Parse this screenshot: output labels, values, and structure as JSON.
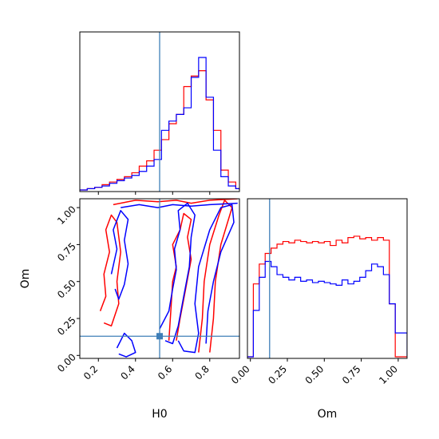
{
  "colors": {
    "series_red": "#ff0000",
    "series_blue": "#0000ff",
    "truth": "#3f7fb8",
    "axes": "#000000",
    "background": "#ffffff"
  },
  "labels": {
    "x_h0": "H0",
    "y_om": "Om",
    "x_om": "Om"
  },
  "chart_data": {
    "type": "corner",
    "parameters": [
      "H0",
      "Om"
    ],
    "truth": {
      "H0": 0.53,
      "Om": 0.13
    },
    "h0_axis": {
      "range": [
        0.1,
        0.96
      ],
      "ticks": [
        "0.2",
        "0.4",
        "0.6",
        "0.8"
      ],
      "tick_values": [
        0.2,
        0.4,
        0.6,
        0.8
      ]
    },
    "om_axis": {
      "range": [
        -0.02,
        1.06
      ],
      "ticks": [
        "0.00",
        "0.25",
        "0.50",
        "0.75",
        "1.00"
      ],
      "tick_values": [
        0.0,
        0.25,
        0.5,
        0.75,
        1.0
      ]
    },
    "h0_marginal": {
      "bin_edges": [
        0.1,
        0.14,
        0.18,
        0.22,
        0.26,
        0.3,
        0.34,
        0.38,
        0.42,
        0.46,
        0.5,
        0.54,
        0.58,
        0.62,
        0.66,
        0.7,
        0.74,
        0.78,
        0.82,
        0.86,
        0.9,
        0.94,
        0.96
      ],
      "series": [
        {
          "color": "red",
          "values": [
            0,
            0.01,
            0.02,
            0.04,
            0.06,
            0.08,
            0.1,
            0.13,
            0.18,
            0.22,
            0.3,
            0.38,
            0.5,
            0.57,
            0.78,
            0.86,
            0.9,
            0.68,
            0.45,
            0.15,
            0.06,
            0.01
          ]
        },
        {
          "color": "blue",
          "values": [
            0,
            0.01,
            0.02,
            0.03,
            0.05,
            0.07,
            0.09,
            0.11,
            0.14,
            0.18,
            0.23,
            0.45,
            0.52,
            0.57,
            0.62,
            0.85,
            1.0,
            0.7,
            0.3,
            0.1,
            0.03,
            0.01
          ]
        }
      ]
    },
    "om_marginal": {
      "bin_edges": [
        -0.02,
        0.02,
        0.06,
        0.1,
        0.14,
        0.18,
        0.22,
        0.26,
        0.3,
        0.34,
        0.38,
        0.42,
        0.46,
        0.5,
        0.54,
        0.58,
        0.62,
        0.66,
        0.7,
        0.74,
        0.78,
        0.82,
        0.86,
        0.9,
        0.94,
        0.98,
        1.02,
        1.06
      ],
      "series": [
        {
          "color": "red",
          "values": [
            0,
            0.55,
            0.7,
            0.78,
            0.82,
            0.85,
            0.87,
            0.86,
            0.88,
            0.87,
            0.86,
            0.87,
            0.86,
            0.87,
            0.84,
            0.88,
            0.86,
            0.9,
            0.91,
            0.89,
            0.9,
            0.88,
            0.9,
            0.88,
            0.4,
            0,
            0
          ]
        },
        {
          "color": "blue",
          "values": [
            0,
            0.35,
            0.6,
            0.72,
            0.68,
            0.62,
            0.6,
            0.58,
            0.6,
            0.57,
            0.58,
            0.56,
            0.57,
            0.56,
            0.55,
            0.54,
            0.58,
            0.55,
            0.57,
            0.6,
            0.65,
            0.7,
            0.68,
            0.62,
            0.4,
            0.18,
            0.18
          ]
        }
      ]
    },
    "contours": [
      {
        "color": "red",
        "points": [
          [
            0.74,
            0.02
          ],
          [
            0.76,
            0.25
          ],
          [
            0.77,
            0.5
          ],
          [
            0.8,
            0.75
          ],
          [
            0.85,
            0.95
          ],
          [
            0.88,
            1.05
          ],
          [
            0.92,
            1.0
          ],
          [
            0.86,
            0.75
          ],
          [
            0.83,
            0.5
          ],
          [
            0.82,
            0.25
          ],
          [
            0.8,
            0.02
          ]
        ]
      },
      {
        "color": "red",
        "points": [
          [
            0.58,
            0.1
          ],
          [
            0.59,
            0.3
          ],
          [
            0.6,
            0.5
          ],
          [
            0.62,
            0.6
          ],
          [
            0.6,
            0.75
          ],
          [
            0.64,
            0.85
          ],
          [
            0.66,
            0.96
          ],
          [
            0.7,
            0.92
          ],
          [
            0.68,
            0.8
          ],
          [
            0.7,
            0.65
          ],
          [
            0.67,
            0.45
          ],
          [
            0.64,
            0.25
          ],
          [
            0.62,
            0.1
          ]
        ]
      },
      {
        "color": "red",
        "points": [
          [
            0.21,
            0.3
          ],
          [
            0.24,
            0.4
          ],
          [
            0.23,
            0.55
          ],
          [
            0.26,
            0.7
          ],
          [
            0.24,
            0.85
          ],
          [
            0.27,
            0.95
          ],
          [
            0.3,
            0.9
          ],
          [
            0.32,
            0.7
          ],
          [
            0.3,
            0.5
          ],
          [
            0.31,
            0.35
          ],
          [
            0.27,
            0.2
          ],
          [
            0.23,
            0.22
          ]
        ]
      },
      {
        "color": "red",
        "points": [
          [
            0.28,
            1.02
          ],
          [
            0.4,
            1.05
          ],
          [
            0.52,
            1.04
          ],
          [
            0.62,
            1.05
          ],
          [
            0.7,
            1.03
          ],
          [
            0.8,
            1.05
          ],
          [
            0.95,
            1.06
          ]
        ]
      },
      {
        "color": "blue",
        "points": [
          [
            0.63,
            0.1
          ],
          [
            0.66,
            0.03
          ],
          [
            0.72,
            0.02
          ],
          [
            0.74,
            0.15
          ],
          [
            0.72,
            0.35
          ],
          [
            0.74,
            0.6
          ],
          [
            0.8,
            0.85
          ],
          [
            0.86,
            1.0
          ],
          [
            0.92,
            1.02
          ],
          [
            0.93,
            0.9
          ],
          [
            0.86,
            0.7
          ],
          [
            0.82,
            0.5
          ],
          [
            0.79,
            0.3
          ],
          [
            0.78,
            0.08
          ]
        ]
      },
      {
        "color": "blue",
        "points": [
          [
            0.53,
            0.18
          ],
          [
            0.58,
            0.3
          ],
          [
            0.6,
            0.45
          ],
          [
            0.62,
            0.58
          ],
          [
            0.61,
            0.72
          ],
          [
            0.64,
            0.85
          ],
          [
            0.63,
            0.98
          ],
          [
            0.68,
            1.03
          ],
          [
            0.72,
            0.95
          ],
          [
            0.7,
            0.8
          ],
          [
            0.69,
            0.6
          ],
          [
            0.66,
            0.4
          ],
          [
            0.63,
            0.2
          ],
          [
            0.6,
            0.08
          ],
          [
            0.56,
            0.1
          ]
        ]
      },
      {
        "color": "blue",
        "points": [
          [
            0.27,
            0.55
          ],
          [
            0.3,
            0.72
          ],
          [
            0.28,
            0.85
          ],
          [
            0.32,
            0.98
          ],
          [
            0.36,
            0.92
          ],
          [
            0.34,
            0.78
          ],
          [
            0.36,
            0.62
          ],
          [
            0.34,
            0.48
          ],
          [
            0.31,
            0.38
          ],
          [
            0.29,
            0.45
          ]
        ]
      },
      {
        "color": "blue",
        "points": [
          [
            0.3,
            0.05
          ],
          [
            0.34,
            0.15
          ],
          [
            0.38,
            0.1
          ],
          [
            0.4,
            0.02
          ],
          [
            0.35,
            -0.01
          ],
          [
            0.31,
            0.01
          ]
        ]
      },
      {
        "color": "blue",
        "points": [
          [
            0.32,
            1.0
          ],
          [
            0.42,
            1.02
          ],
          [
            0.52,
            1.0
          ],
          [
            0.6,
            1.02
          ],
          [
            0.7,
            1.01
          ],
          [
            0.8,
            1.02
          ],
          [
            0.95,
            1.03
          ]
        ]
      }
    ]
  }
}
